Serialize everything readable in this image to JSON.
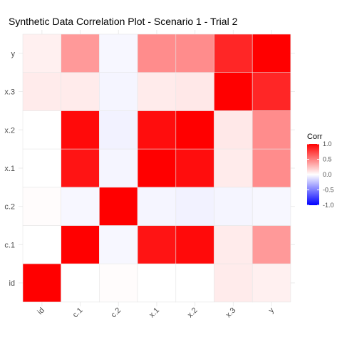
{
  "chart_data": {
    "type": "heatmap",
    "title": "Synthetic Data Correlation Plot - Scenario 1 - Trial 2",
    "x_categories": [
      "id",
      "c.1",
      "c.2",
      "x.1",
      "x.2",
      "x.3",
      "y"
    ],
    "y_categories": [
      "id",
      "c.1",
      "c.2",
      "x.1",
      "x.2",
      "x.3",
      "y"
    ],
    "values": [
      [
        1.0,
        0.0,
        0.01,
        0.0,
        0.0,
        0.08,
        0.06
      ],
      [
        0.0,
        1.0,
        -0.03,
        0.92,
        0.96,
        0.08,
        0.4
      ],
      [
        0.01,
        -0.03,
        1.0,
        -0.04,
        -0.05,
        -0.04,
        -0.03
      ],
      [
        0.0,
        0.92,
        -0.04,
        1.0,
        0.95,
        0.08,
        0.45
      ],
      [
        0.0,
        0.96,
        -0.05,
        0.95,
        1.0,
        0.09,
        0.45
      ],
      [
        0.08,
        0.08,
        -0.04,
        0.08,
        0.09,
        1.0,
        0.85
      ],
      [
        0.06,
        0.4,
        -0.03,
        0.45,
        0.45,
        0.85,
        1.0
      ]
    ],
    "legend": {
      "title": "Corr",
      "ticks": [
        "1.0",
        "0.5",
        "0.0",
        "-0.5",
        "-1.0"
      ],
      "range": [
        -1,
        1
      ],
      "low_color": "#0000ff",
      "mid_color": "#ffffff",
      "high_color": "#ff0000"
    },
    "grid": true
  }
}
